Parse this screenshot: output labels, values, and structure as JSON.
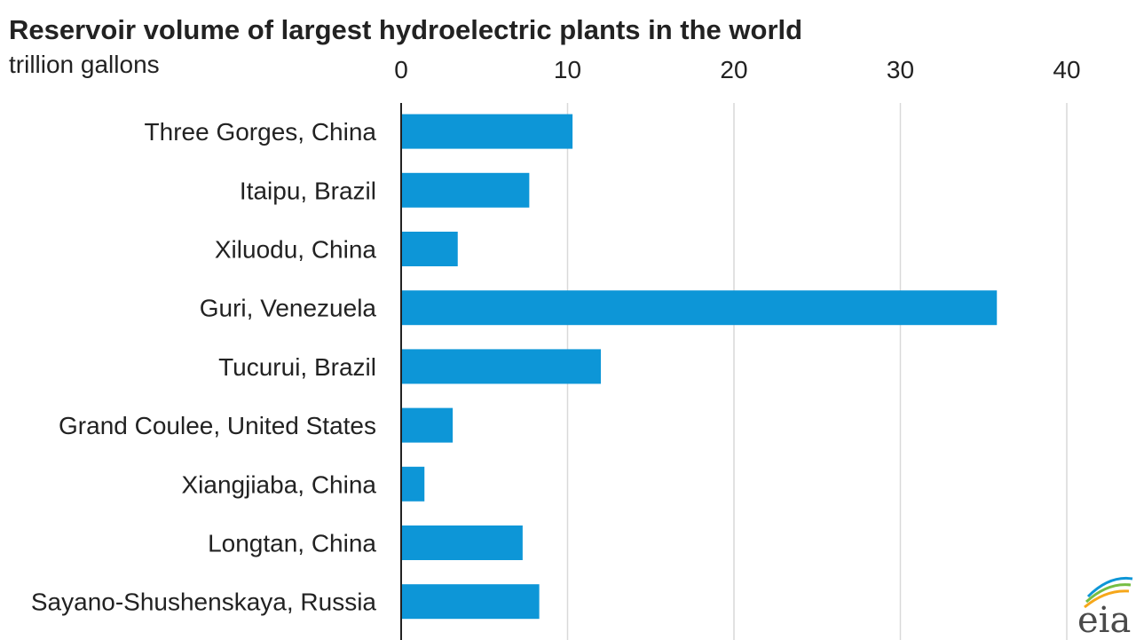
{
  "chart_data": {
    "type": "bar",
    "orientation": "horizontal",
    "title": "Reservoir volume of largest hydroelectric plants in the world",
    "subtitle": "trillion gallons",
    "categories": [
      "Three Gorges, China",
      "Itaipu, Brazil",
      "Xiluodu, China",
      "Guri, Venezuela",
      "Tucurui, Brazil",
      "Grand Coulee, United States",
      "Xiangjiaba, China",
      "Longtan, China",
      "Sayano-Shushenskaya, Russia"
    ],
    "values": [
      10.3,
      7.7,
      3.4,
      35.8,
      12.0,
      3.1,
      1.4,
      7.3,
      8.3
    ],
    "xlim": [
      0,
      40
    ],
    "xticks": [
      0,
      10,
      20,
      30,
      40
    ],
    "xaxis_position": "top",
    "grid": "vertical",
    "bar_color": "#0d96d7",
    "grid_color": "#d9d9d9"
  },
  "logo": {
    "text": "eia",
    "colors": [
      "#f6a71a",
      "#76bd43",
      "#0d96d7"
    ]
  }
}
